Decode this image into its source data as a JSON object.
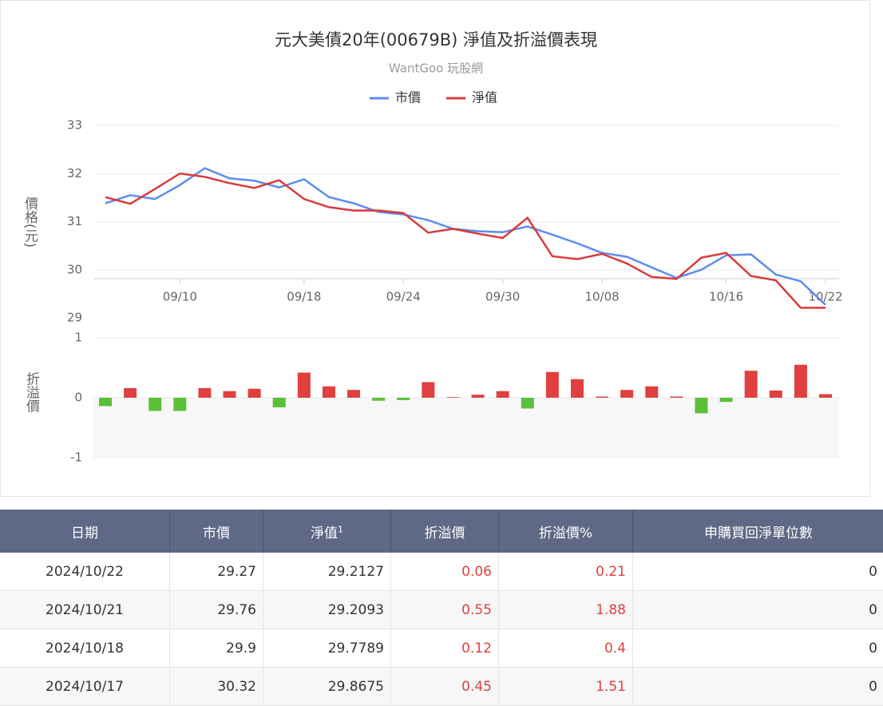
{
  "chart_data": [
    {
      "type": "line",
      "title": "元大美債20年(00679B) 淨值及折溢價表現",
      "subtitle": "WantGoo 玩股網",
      "y_label": "價格(元)",
      "categories": [
        null,
        null,
        null,
        "09/10",
        null,
        null,
        null,
        null,
        "09/18",
        null,
        null,
        null,
        "09/24",
        null,
        null,
        null,
        "09/30",
        null,
        null,
        null,
        "10/08",
        null,
        null,
        null,
        null,
        "10/16",
        null,
        null,
        null,
        "10/22"
      ],
      "series": [
        {
          "name": "市價",
          "color": "#5b8def",
          "values": [
            31.38,
            31.55,
            31.47,
            31.76,
            32.11,
            31.9,
            31.85,
            31.71,
            31.88,
            31.51,
            31.38,
            31.2,
            31.15,
            31.03,
            30.85,
            30.8,
            30.78,
            30.9,
            30.73,
            30.55,
            30.35,
            30.27,
            30.05,
            29.83,
            30.0,
            30.3,
            30.32,
            29.9,
            29.76,
            29.27
          ]
        },
        {
          "name": "淨值",
          "color": "#d93b3b",
          "values": [
            31.51,
            31.37,
            31.68,
            32.0,
            31.93,
            31.8,
            31.7,
            31.86,
            31.47,
            31.3,
            31.23,
            31.23,
            31.18,
            30.77,
            30.85,
            30.75,
            30.66,
            31.08,
            30.28,
            30.22,
            30.33,
            30.13,
            29.85,
            29.81,
            30.25,
            30.35,
            29.87,
            29.78,
            29.21,
            29.21
          ]
        }
      ],
      "ylim": [
        29,
        33
      ],
      "yticks": [
        29,
        30,
        31,
        32,
        33
      ],
      "grid": true
    },
    {
      "type": "bar",
      "y_label": "折溢價",
      "color_positive": "#e0403f",
      "color_negative": "#5cbf3a",
      "values": [
        -0.14,
        0.16,
        -0.22,
        -0.22,
        0.16,
        0.11,
        0.15,
        -0.16,
        0.42,
        0.19,
        0.13,
        -0.05,
        -0.04,
        0.26,
        0.01,
        0.05,
        0.11,
        -0.18,
        0.43,
        0.31,
        0.02,
        0.13,
        0.19,
        0.02,
        -0.26,
        -0.07,
        0.45,
        0.12,
        0.55,
        0.06
      ],
      "ylim": [
        -1,
        1
      ],
      "yticks": [
        -1,
        0,
        1
      ],
      "grid": true
    }
  ],
  "table": {
    "header": [
      "日期",
      "市價",
      "淨值",
      "折溢價",
      "折溢價%",
      "申購買回淨單位數"
    ],
    "header_sup": "1",
    "rows": [
      [
        "2024/10/22",
        "29.27",
        "29.2127",
        "0.06",
        "0.21",
        "0"
      ],
      [
        "2024/10/21",
        "29.76",
        "29.2093",
        "0.55",
        "1.88",
        "0"
      ],
      [
        "2024/10/18",
        "29.9",
        "29.7789",
        "0.12",
        "0.4",
        "0"
      ],
      [
        "2024/10/17",
        "30.32",
        "29.8675",
        "0.45",
        "1.51",
        "0"
      ]
    ]
  }
}
